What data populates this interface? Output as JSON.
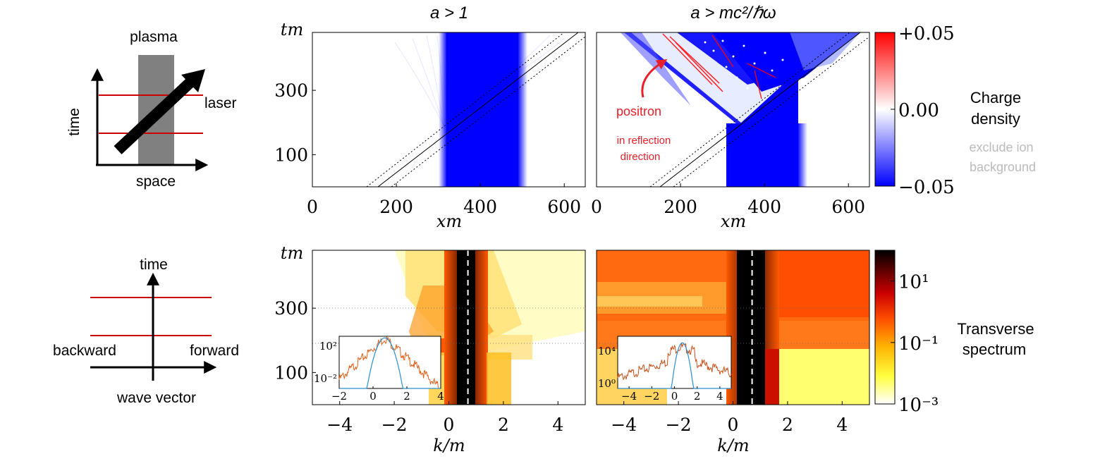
{
  "schematics": {
    "top": {
      "plasma": "plasma",
      "laser": "laser",
      "time": "time",
      "space": "space"
    },
    "bottom": {
      "time": "time",
      "backward": "backward",
      "forward": "forward",
      "wave_vector": "wave vector"
    }
  },
  "labels": {
    "col1_title": "a > 1",
    "col2_title": "a > mc²/ℏω",
    "tm": "tm",
    "xm": "xm",
    "km": "k/m",
    "charge_density": [
      "Charge",
      "density"
    ],
    "exclude_ion": [
      "exclude ion",
      "background"
    ],
    "transverse_spectrum": [
      "Transverse",
      "spectrum"
    ],
    "positron": "positron",
    "reflection": [
      "in reflection",
      "direction"
    ]
  },
  "colors": {
    "electron_blue": "#0000ff",
    "positron_red": "#ff0000",
    "laser_line": "#cc0000",
    "plasma_gray": "#808080",
    "annotation_red": "#e8202a",
    "muted_gray": "#bbbbbb"
  },
  "chart_data": [
    {
      "id": "top-left",
      "type": "heatmap",
      "title": "a > 1",
      "xlabel": "xm",
      "ylabel": "tm",
      "xlim": [
        0,
        650
      ],
      "ylim": [
        0,
        480
      ],
      "xticks": [
        0,
        200,
        400,
        600
      ],
      "yticks": [
        100,
        300
      ],
      "colormap": "blue-white-red",
      "clim": [
        -0.05,
        0.05
      ],
      "plasma_x": [
        320,
        500
      ]
    },
    {
      "id": "top-right",
      "type": "heatmap",
      "title": "a > mc²/ℏω",
      "xlabel": "xm",
      "ylabel": "",
      "xlim": [
        0,
        650
      ],
      "ylim": [
        0,
        480
      ],
      "xticks": [
        0,
        200,
        400,
        600
      ],
      "yticks": [],
      "colormap": "blue-white-red",
      "clim": [
        -0.05,
        0.05
      ],
      "plasma_x": [
        320,
        490
      ]
    },
    {
      "id": "colorbar-top",
      "type": "heatmap",
      "tick_labels": [
        "+0.05",
        "0.00",
        "−0.05"
      ],
      "ticks": [
        0.05,
        0.0,
        -0.05
      ]
    },
    {
      "id": "bottom-left",
      "type": "heatmap",
      "xlabel": "k/m",
      "ylabel": "tm",
      "xlim": [
        -5,
        5
      ],
      "ylim": [
        0,
        480
      ],
      "xticks": [
        -4,
        -2,
        0,
        2,
        4
      ],
      "yticks": [
        100,
        300
      ],
      "colormap": "hot (log)",
      "dashed_k": 0.7,
      "inset": {
        "xlim": [
          -2,
          4
        ],
        "xticks": [
          -2,
          0,
          2,
          4
        ],
        "yscale": "log",
        "ytick_labels": [
          "10²",
          "10⁻²"
        ],
        "ytick_values": [
          2,
          -2
        ],
        "ylim_log": [
          -3.2,
          3.2
        ]
      }
    },
    {
      "id": "bottom-right",
      "type": "heatmap",
      "xlabel": "k/m",
      "ylabel": "",
      "xlim": [
        -5,
        5
      ],
      "ylim": [
        0,
        480
      ],
      "xticks": [
        -4,
        -2,
        0,
        2,
        4
      ],
      "yticks": [],
      "colormap": "hot (log)",
      "dashed_k": 0.7,
      "inset": {
        "xlim": [
          -5,
          5
        ],
        "xticks": [
          -4,
          -2,
          0,
          2,
          4
        ],
        "yscale": "log",
        "ytick_labels": [
          "10⁴",
          "10⁰"
        ],
        "ytick_values": [
          4,
          0
        ],
        "ylim_log": [
          -0.6,
          5.8
        ]
      }
    },
    {
      "id": "colorbar-bottom",
      "type": "heatmap",
      "scale": "log",
      "tick_labels": [
        "10¹",
        "10⁻¹",
        "10⁻³"
      ],
      "ticks": [
        1,
        -1,
        -3
      ]
    }
  ]
}
